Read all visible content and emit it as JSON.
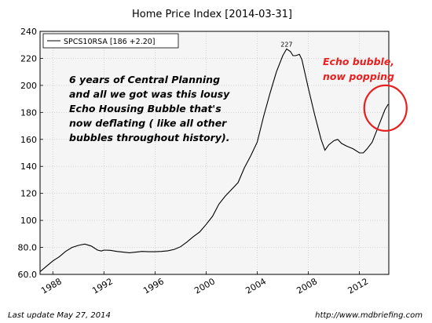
{
  "chart_data": {
    "type": "line",
    "title": "Home Price Index  [2014-03-31]",
    "xlabel": "",
    "ylabel": "",
    "xlim": [
      1987.0,
      2014.3
    ],
    "ylim": [
      60,
      240
    ],
    "xticks": [
      1988,
      1992,
      1996,
      2000,
      2004,
      2008,
      2012
    ],
    "yticks": [
      60,
      80,
      100,
      120,
      140,
      160,
      180,
      200,
      220,
      240
    ],
    "ytick_labels": [
      "60.0",
      "80.0",
      "100",
      "120",
      "140",
      "160",
      "180",
      "200",
      "220",
      "240"
    ],
    "grid": true,
    "legend_position": "top-left",
    "series": [
      {
        "name": "SPCS10RSA [186 +2.20]",
        "color": "#000000",
        "points": [
          [
            1987.0,
            62
          ],
          [
            1987.5,
            66
          ],
          [
            1988.0,
            70
          ],
          [
            1988.5,
            73
          ],
          [
            1989.0,
            77
          ],
          [
            1989.5,
            80
          ],
          [
            1990.0,
            81.5
          ],
          [
            1990.5,
            82.5
          ],
          [
            1991.0,
            81
          ],
          [
            1991.5,
            78
          ],
          [
            1991.8,
            77.3
          ],
          [
            1992.0,
            78
          ],
          [
            1992.5,
            77.8
          ],
          [
            1993.0,
            77
          ],
          [
            1993.5,
            76.5
          ],
          [
            1994.0,
            76
          ],
          [
            1994.5,
            76.5
          ],
          [
            1995.0,
            77
          ],
          [
            1995.5,
            76.8
          ],
          [
            1996.0,
            76.8
          ],
          [
            1996.5,
            77
          ],
          [
            1997.0,
            77.5
          ],
          [
            1997.5,
            78.5
          ],
          [
            1998.0,
            80.5
          ],
          [
            1998.5,
            84
          ],
          [
            1999.0,
            88
          ],
          [
            1999.5,
            91.5
          ],
          [
            2000.0,
            97
          ],
          [
            2000.5,
            103
          ],
          [
            2001.0,
            112
          ],
          [
            2001.5,
            118
          ],
          [
            2002.0,
            123
          ],
          [
            2002.5,
            128
          ],
          [
            2003.0,
            139
          ],
          [
            2003.5,
            148
          ],
          [
            2004.0,
            158
          ],
          [
            2004.5,
            177
          ],
          [
            2005.0,
            194
          ],
          [
            2005.5,
            210
          ],
          [
            2006.0,
            222
          ],
          [
            2006.3,
            227
          ],
          [
            2006.6,
            225
          ],
          [
            2006.8,
            222
          ],
          [
            2007.0,
            222
          ],
          [
            2007.3,
            223
          ],
          [
            2007.5,
            219
          ],
          [
            2008.0,
            198
          ],
          [
            2008.5,
            178
          ],
          [
            2009.0,
            160
          ],
          [
            2009.3,
            152
          ],
          [
            2009.6,
            156
          ],
          [
            2010.0,
            159
          ],
          [
            2010.3,
            160
          ],
          [
            2010.6,
            157
          ],
          [
            2011.0,
            155
          ],
          [
            2011.5,
            153
          ],
          [
            2012.0,
            150
          ],
          [
            2012.3,
            150
          ],
          [
            2012.6,
            153
          ],
          [
            2013.0,
            158
          ],
          [
            2013.5,
            170
          ],
          [
            2014.0,
            182
          ],
          [
            2014.25,
            186
          ]
        ]
      }
    ],
    "peak_label": {
      "x": 2006.3,
      "y": 227,
      "text": "227"
    },
    "annotations": [
      {
        "text_lines": [
          "6 years of Central Planning",
          "and all we got was this lousy",
          "Echo Housing Bubble that's",
          "now deflating ( like all other",
          "bubbles throughout history)."
        ],
        "color": "#000000"
      },
      {
        "text_lines": [
          "Echo bubble,",
          "now popping"
        ],
        "color": "#e82020"
      }
    ],
    "highlight_circle": {
      "x": 2014.1,
      "y": 182,
      "color": "#e82020"
    }
  },
  "footer": {
    "left": "Last update May 27, 2014",
    "right": "http://www.mdbriefing.com"
  }
}
